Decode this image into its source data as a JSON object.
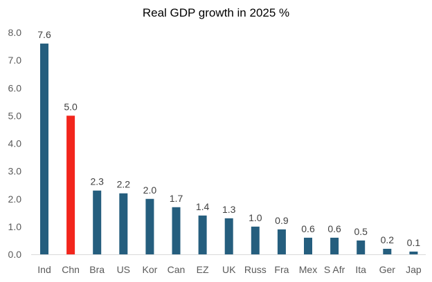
{
  "chart_data": {
    "type": "bar",
    "title": "Real GDP growth in 2025 %",
    "xlabel": "",
    "ylabel": "",
    "categories": [
      "Ind",
      "Chn",
      "Bra",
      "US",
      "Kor",
      "Can",
      "EZ",
      "UK",
      "Russ",
      "Fra",
      "Mex",
      "S Afr",
      "Ita",
      "Ger",
      "Jap"
    ],
    "values": [
      7.6,
      5.0,
      2.3,
      2.2,
      2.0,
      1.7,
      1.4,
      1.3,
      1.0,
      0.9,
      0.6,
      0.6,
      0.5,
      0.2,
      0.1
    ],
    "data_labels": [
      "7.6",
      "5.0",
      "2.3",
      "2.2",
      "2.0",
      "1.7",
      "1.4",
      "1.3",
      "1.0",
      "0.9",
      "0.6",
      "0.6",
      "0.5",
      "0.2",
      "0.1"
    ],
    "ylim": [
      0,
      8
    ],
    "yticks": [
      "0.0",
      "1.0",
      "2.0",
      "3.0",
      "4.0",
      "5.0",
      "6.0",
      "7.0",
      "8.0"
    ],
    "grid": false,
    "legend": "none",
    "colors": {
      "default_bar": "#255e7e",
      "highlight_bar": "#f2261d",
      "axis_line": "#d9d9d9"
    },
    "highlight_category": "Chn"
  }
}
